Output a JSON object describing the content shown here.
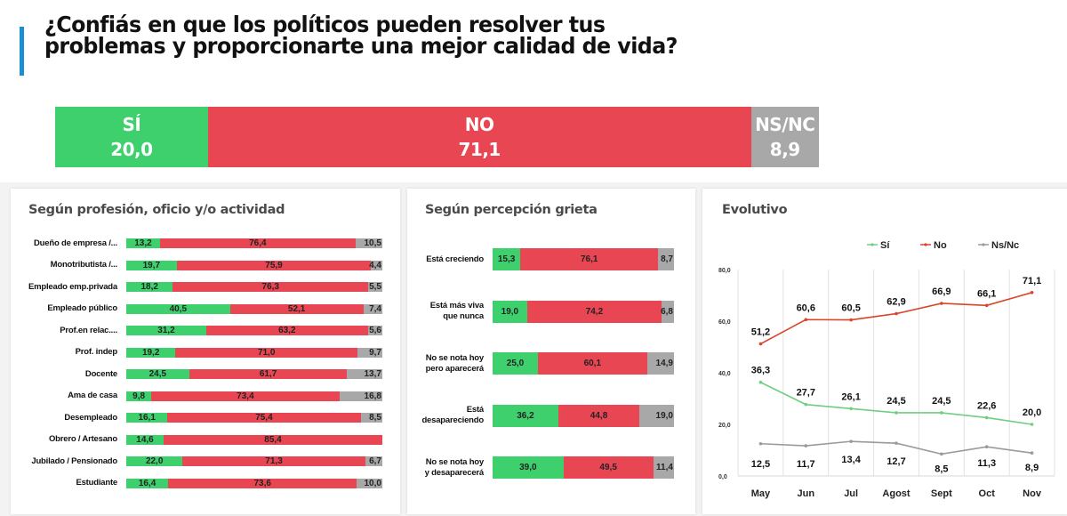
{
  "header": {
    "title_line1": "¿Confiás en que los políticos pueden resolver tus",
    "title_line2": "problemas y proporcionarte una mejor calidad de vida?"
  },
  "colors": {
    "si": "#3fd06e",
    "no": "#e84653",
    "nsnc": "#a8a8a8",
    "accent": "#1a8fd1",
    "line_si": "#6fcf7f",
    "line_no": "#d9442a",
    "line_nsnc": "#9a9a9a"
  },
  "summary": [
    {
      "label": "SÍ",
      "value": "20,0",
      "pct": 20.0,
      "key": "si"
    },
    {
      "label": "NO",
      "value": "71,1",
      "pct": 71.1,
      "key": "no"
    },
    {
      "label": "NS/NC",
      "value": "8,9",
      "pct": 8.9,
      "key": "nsnc"
    }
  ],
  "chart_data": [
    {
      "type": "bar",
      "stacked": true,
      "orientation": "horizontal",
      "title": "Según profesión, oficio y/o actividad",
      "categories": [
        "Dueño de empresa /...",
        "Monotributista /...",
        "Empleado emp.privada",
        "Empleado público",
        "Prof.en relac....",
        "Prof. indep",
        "Docente",
        "Ama de casa",
        "Desempleado",
        "Obrero / Artesano",
        "Jubilado / Pensionado",
        "Estudiante"
      ],
      "series": [
        {
          "name": "Sí",
          "values": [
            13.2,
            19.7,
            18.2,
            40.5,
            31.2,
            19.2,
            24.5,
            9.8,
            16.1,
            14.6,
            22.0,
            16.4
          ],
          "labels": [
            "13,2",
            "19,7",
            "18,2",
            "40,5",
            "31,2",
            "19,2",
            "24,5",
            "9,8",
            "16,1",
            "14,6",
            "22,0",
            "16,4"
          ]
        },
        {
          "name": "No",
          "values": [
            76.4,
            75.9,
            76.3,
            52.1,
            63.2,
            71.0,
            61.7,
            73.4,
            75.4,
            85.4,
            71.3,
            73.6
          ],
          "labels": [
            "76,4",
            "75,9",
            "76,3",
            "52,1",
            "63,2",
            "71,0",
            "61,7",
            "73,4",
            "75,4",
            "85,4",
            "71,3",
            "73,6"
          ]
        },
        {
          "name": "Ns/Nc",
          "values": [
            10.5,
            4.4,
            5.5,
            7.4,
            5.6,
            9.7,
            13.7,
            16.8,
            8.5,
            0,
            6.7,
            10.0
          ],
          "labels": [
            "10,5",
            "4,4",
            "5,5",
            "7,4",
            "5,6",
            "9,7",
            "13,7",
            "16,8",
            "8,5",
            "",
            "6,7",
            "10,0"
          ]
        }
      ]
    },
    {
      "type": "bar",
      "stacked": true,
      "orientation": "horizontal",
      "title": "Según percepción grieta",
      "categories": [
        [
          "Está creciendo"
        ],
        [
          "Está más viva",
          "que nunca"
        ],
        [
          "No se nota hoy",
          "pero aparecerá"
        ],
        [
          "Está",
          "desapareciendo"
        ],
        [
          "No se nota hoy",
          "y desaparecerá"
        ]
      ],
      "series": [
        {
          "name": "Sí",
          "values": [
            15.3,
            19.0,
            25.0,
            36.2,
            39.0
          ],
          "labels": [
            "15,3",
            "19,0",
            "25,0",
            "36,2",
            "39,0"
          ]
        },
        {
          "name": "No",
          "values": [
            76.1,
            74.2,
            60.1,
            44.8,
            49.5
          ],
          "labels": [
            "76,1",
            "74,2",
            "60,1",
            "44,8",
            "49,5"
          ]
        },
        {
          "name": "Ns/Nc",
          "values": [
            8.7,
            6.8,
            14.9,
            19.0,
            11.4
          ],
          "labels": [
            "8,7",
            "6,8",
            "14,9",
            "19,0",
            "11,4"
          ]
        }
      ]
    },
    {
      "type": "line",
      "title": "Evolutivo",
      "x": [
        "May",
        "Jun",
        "Jul",
        "Agost",
        "Sept",
        "Oct",
        "Nov"
      ],
      "ylim": [
        0,
        80
      ],
      "yticks": [
        0,
        20,
        40,
        60,
        80
      ],
      "ytick_labels": [
        "0,0",
        "20,0",
        "40,0",
        "60,0",
        "80,0"
      ],
      "grid": "vertical",
      "legend": "top",
      "series": [
        {
          "name": "Sí",
          "key": "line_si",
          "values": [
            36.3,
            27.7,
            26.1,
            24.5,
            24.5,
            22.6,
            20.0
          ],
          "labels": [
            "36,3",
            "27,7",
            "26,1",
            "24,5",
            "24,5",
            "22,6",
            "20,0"
          ]
        },
        {
          "name": "No",
          "key": "line_no",
          "values": [
            51.2,
            60.6,
            60.5,
            62.9,
            66.9,
            66.1,
            71.1
          ],
          "labels": [
            "51,2",
            "60,6",
            "60,5",
            "62,9",
            "66,9",
            "66,1",
            "71,1"
          ]
        },
        {
          "name": "Ns/Nc",
          "key": "line_nsnc",
          "values": [
            12.5,
            11.7,
            13.4,
            12.7,
            8.5,
            11.3,
            8.9
          ],
          "labels": [
            "12,5",
            "11,7",
            "13,4",
            "12,7",
            "8,5",
            "11,3",
            "8,9"
          ]
        }
      ]
    }
  ]
}
